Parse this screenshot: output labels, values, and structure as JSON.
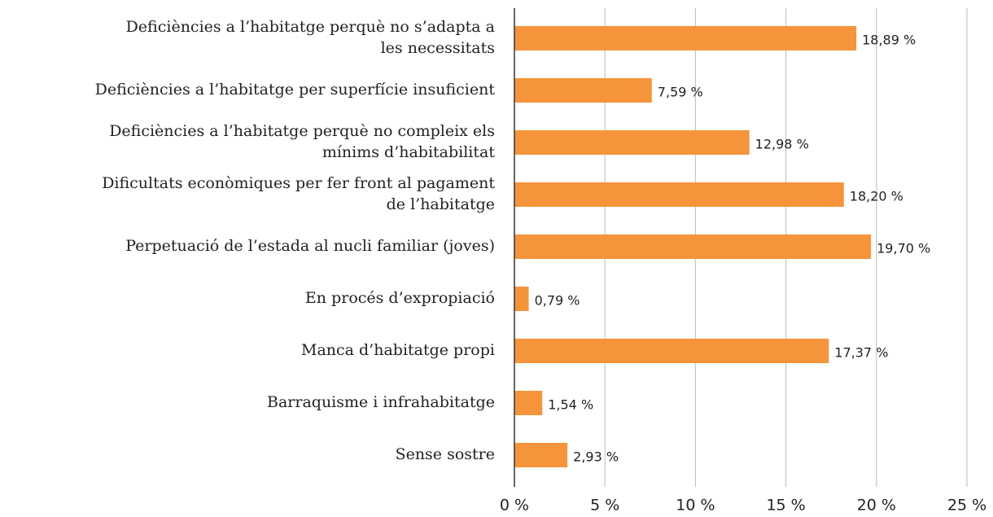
{
  "chart_data": {
    "type": "barh",
    "categories": [
      "Deficiències a l’habitatge perquè no s’adapta a\nles necessitats",
      "Deficiències a l’habitatge per superfície insuficient",
      "Deficiències a l’habitatge perquè no compleix els\nmínims d’habitabilitat",
      "Dificultats econòmiques per fer front al pagament\nde l’habitatge",
      "Perpetuació de l’estada al nucli familiar (joves)",
      "En procés d’expropiació",
      "Manca d’habitatge propi",
      "Barraquisme i infrahabitatge",
      "Sense sostre"
    ],
    "values": [
      18.89,
      7.59,
      12.98,
      18.2,
      19.7,
      0.79,
      17.37,
      1.54,
      2.93
    ],
    "value_labels": [
      "18,89 %",
      "7,59 %",
      "12,98 %",
      "18,20 %",
      "19,70 %",
      "0,79 %",
      "17,37 %",
      "1,54 %",
      "2,93 %"
    ],
    "color": "#f5943a",
    "xlim": [
      0,
      25
    ],
    "xticks": [
      {
        "value": 0,
        "label": "0 %"
      },
      {
        "value": 5,
        "label": "5 %"
      },
      {
        "value": 10,
        "label": "10 %"
      },
      {
        "value": 15,
        "label": "15 %"
      },
      {
        "value": 20,
        "label": "20 %"
      },
      {
        "value": 25,
        "label": "25 %"
      }
    ],
    "grid": true
  }
}
